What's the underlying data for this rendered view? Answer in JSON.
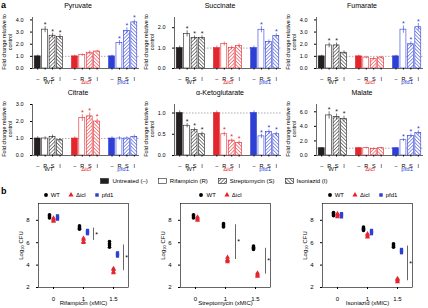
{
  "panel_labels": [
    "a",
    "b"
  ],
  "treatment_labels": [
    "Untreated (–)",
    "Rifampicin (R)",
    "Streptomycin (S)",
    "Isoniazid (I)"
  ],
  "significance_label": "*",
  "chart_data": [
    {
      "type": "bar",
      "title": "Pyruvate",
      "ylabel": "Fold change relative to control",
      "categories": [
        "–",
        "R",
        "S",
        "I"
      ],
      "ylim": [
        0,
        4.2
      ],
      "yticks": [
        0,
        1,
        2,
        3,
        4
      ],
      "hline": 1,
      "series": [
        {
          "name": "WT",
          "color": "#231f20",
          "values": [
            1,
            3.2,
            2.7,
            2.6
          ],
          "errors": [
            0.1,
            0.25,
            0.2,
            0.2
          ],
          "significant": [
            false,
            true,
            true,
            true
          ]
        },
        {
          "name": "Δicl",
          "color": "#e3262d",
          "values": [
            1,
            1.1,
            1.3,
            1.4
          ],
          "errors": [
            0.1,
            0.1,
            0.15,
            0.1
          ],
          "significant": [
            false,
            false,
            false,
            false
          ]
        },
        {
          "name": "pfd1",
          "color": "#2e3fd6",
          "values": [
            1,
            2.1,
            3.1,
            3.8
          ],
          "errors": [
            0.1,
            0.2,
            0.25,
            0.2
          ],
          "significant": [
            false,
            true,
            true,
            true
          ]
        }
      ]
    },
    {
      "type": "bar",
      "title": "Succinate",
      "ylabel": "Fold change relative to control",
      "categories": [
        "–",
        "R",
        "S",
        "I"
      ],
      "ylim": [
        0,
        2.5
      ],
      "yticks": [
        0,
        1,
        2
      ],
      "hline": 1,
      "series": [
        {
          "name": "WT",
          "color": "#231f20",
          "values": [
            1,
            1.7,
            1.5,
            1.5
          ],
          "errors": [
            0.1,
            0.15,
            0.1,
            0.1
          ],
          "significant": [
            false,
            true,
            true,
            true
          ]
        },
        {
          "name": "Δicl",
          "color": "#e3262d",
          "values": [
            1,
            1.2,
            1.0,
            1.1
          ],
          "errors": [
            0.1,
            0.1,
            0.1,
            0.1
          ],
          "significant": [
            false,
            false,
            false,
            false
          ]
        },
        {
          "name": "pfd1",
          "color": "#2e3fd6",
          "values": [
            1,
            1.9,
            1.3,
            1.6
          ],
          "errors": [
            0.1,
            0.15,
            0.1,
            0.1
          ],
          "significant": [
            false,
            true,
            false,
            true
          ]
        }
      ]
    },
    {
      "type": "bar",
      "title": "Fumarate",
      "ylabel": "Fold change relative to control",
      "categories": [
        "–",
        "R",
        "S",
        "I"
      ],
      "ylim": [
        0,
        4.2
      ],
      "yticks": [
        0,
        1,
        2,
        3,
        4
      ],
      "hline": 1,
      "series": [
        {
          "name": "WT",
          "color": "#231f20",
          "values": [
            1,
            1.9,
            1.9,
            1.3
          ],
          "errors": [
            0.1,
            0.2,
            0.2,
            0.15
          ],
          "significant": [
            false,
            true,
            true,
            false
          ]
        },
        {
          "name": "Δicl",
          "color": "#e3262d",
          "values": [
            1,
            0.9,
            0.8,
            0.9
          ],
          "errors": [
            0.1,
            0.1,
            0.1,
            0.1
          ],
          "significant": [
            false,
            false,
            false,
            false
          ]
        },
        {
          "name": "pfd1",
          "color": "#2e3fd6",
          "values": [
            1,
            3.2,
            2.0,
            3.4
          ],
          "errors": [
            0.1,
            0.3,
            0.2,
            0.3
          ],
          "significant": [
            false,
            true,
            true,
            true
          ]
        }
      ]
    },
    {
      "type": "bar",
      "title": "Citrate",
      "ylabel": "Fold change relative to control",
      "categories": [
        "–",
        "R",
        "S",
        "I"
      ],
      "ylim": [
        0,
        3
      ],
      "yticks": [
        0,
        1,
        2,
        3
      ],
      "hline": 1,
      "series": [
        {
          "name": "WT",
          "color": "#231f20",
          "values": [
            1,
            1.0,
            1.1,
            0.9
          ],
          "errors": [
            0.1,
            0.1,
            0.1,
            0.1
          ],
          "significant": [
            false,
            false,
            false,
            false
          ]
        },
        {
          "name": "Δicl",
          "color": "#e3262d",
          "values": [
            1,
            2.2,
            2.3,
            2.0
          ],
          "errors": [
            0.1,
            0.2,
            0.2,
            0.15
          ],
          "significant": [
            false,
            true,
            true,
            true
          ]
        },
        {
          "name": "pfd1",
          "color": "#2e3fd6",
          "values": [
            1,
            1.0,
            1.0,
            1.1
          ],
          "errors": [
            0.1,
            0.1,
            0.1,
            0.1
          ],
          "significant": [
            false,
            false,
            false,
            false
          ]
        }
      ]
    },
    {
      "type": "bar",
      "title": "α-Ketoglutarate",
      "ylabel": "Fold change relative to control",
      "categories": [
        "–",
        "R",
        "S",
        "I"
      ],
      "ylim": [
        0,
        1.2
      ],
      "yticks": [
        0,
        0.5,
        1
      ],
      "hline": 1,
      "series": [
        {
          "name": "WT",
          "color": "#231f20",
          "values": [
            1,
            0.7,
            0.6,
            0.5
          ],
          "errors": [
            0.05,
            0.05,
            0.05,
            0.05
          ],
          "significant": [
            false,
            true,
            true,
            true
          ]
        },
        {
          "name": "Δicl",
          "color": "#e3262d",
          "values": [
            1,
            0.5,
            0.35,
            0.3
          ],
          "errors": [
            0.05,
            0.05,
            0.04,
            0.04
          ],
          "significant": [
            false,
            true,
            true,
            true
          ]
        },
        {
          "name": "pfd1",
          "color": "#2e3fd6",
          "values": [
            1,
            0.45,
            0.55,
            0.5
          ],
          "errors": [
            0.05,
            0.05,
            0.05,
            0.05
          ],
          "significant": [
            false,
            true,
            true,
            true
          ]
        }
      ]
    },
    {
      "type": "bar",
      "title": "Malate",
      "ylabel": "Fold change relative to control",
      "categories": [
        "–",
        "R",
        "S",
        "I"
      ],
      "ylim": [
        0,
        7
      ],
      "yticks": [
        0,
        2,
        4,
        6
      ],
      "hline": 1,
      "series": [
        {
          "name": "WT",
          "color": "#231f20",
          "values": [
            1,
            5.5,
            5.3,
            5.0
          ],
          "errors": [
            0.1,
            0.5,
            0.4,
            0.4
          ],
          "significant": [
            false,
            true,
            true,
            true
          ]
        },
        {
          "name": "Δicl",
          "color": "#e3262d",
          "values": [
            1,
            1.0,
            0.9,
            1.0
          ],
          "errors": [
            0.1,
            0.1,
            0.1,
            0.1
          ],
          "significant": [
            false,
            false,
            false,
            false
          ]
        },
        {
          "name": "pfd1",
          "color": "#2e3fd6",
          "values": [
            1,
            2.1,
            2.7,
            3.1
          ],
          "errors": [
            0.1,
            0.2,
            0.25,
            0.3
          ],
          "significant": [
            false,
            true,
            true,
            true
          ]
        }
      ]
    },
    {
      "type": "scatter",
      "xlabel": "Rifampicin (xMIC)",
      "ylabel": "Log₁₀ CFU",
      "categories": [
        "0",
        "1",
        "1.5"
      ],
      "ylim": [
        2,
        9.5
      ],
      "yticks": [
        2,
        4,
        6,
        8
      ],
      "legend": "top",
      "series": [
        {
          "name": "WT",
          "color": "#000000",
          "marker": "circle",
          "values": [
            [
              8.5,
              8.3,
              8.2,
              8.4
            ],
            [
              7.5,
              7.3,
              7.2,
              7.4
            ],
            [
              5.9,
              5.6,
              5.8,
              6.1
            ]
          ]
        },
        {
          "name": "Δicl",
          "color": "#e3262d",
          "marker": "triangle",
          "values": [
            [
              8.0,
              8.2,
              7.9,
              8.1
            ],
            [
              6.4,
              6.1,
              6.0,
              6.3
            ],
            [
              3.7,
              3.4,
              3.3,
              3.6
            ]
          ]
        },
        {
          "name": "pfd1",
          "color": "#2e3fd6",
          "marker": "square",
          "values": [
            [
              8.3,
              8.1,
              8.2,
              8.4
            ],
            [
              7.1,
              6.9,
              7.0,
              6.8
            ],
            [
              5.0,
              4.8,
              4.9,
              5.1
            ]
          ]
        }
      ],
      "comparisons": [
        {
          "x": "1",
          "y1": 7.3,
          "y2": 6.2
        },
        {
          "x": "1.5",
          "y1": 5.8,
          "y2": 3.5
        }
      ]
    },
    {
      "type": "scatter",
      "xlabel": "Streptomycin (xMIC)",
      "ylabel": "Log₁₀ CFU",
      "categories": [
        "0",
        "1",
        "1.5"
      ],
      "ylim": [
        2,
        9.5
      ],
      "yticks": [
        2,
        4,
        6,
        8
      ],
      "legend": "top",
      "series": [
        {
          "name": "WT",
          "color": "#000000",
          "marker": "circle",
          "values": [
            [
              8.4,
              8.2,
              8.3,
              8.5
            ],
            [
              7.7,
              7.5,
              7.6,
              7.4
            ],
            [
              5.6,
              5.4,
              5.5,
              5.7
            ]
          ]
        },
        {
          "name": "Δicl",
          "color": "#e3262d",
          "marker": "triangle",
          "values": [
            [
              8.1,
              8.3,
              8.0,
              8.2
            ],
            [
              4.7,
              4.4,
              4.5,
              4.3
            ],
            [
              3.3,
              3.0,
              3.2,
              3.1
            ]
          ]
        }
      ],
      "comparisons": [
        {
          "x": "1",
          "y1": 7.6,
          "y2": 4.5
        },
        {
          "x": "1.5",
          "y1": 5.5,
          "y2": 3.2
        }
      ]
    },
    {
      "type": "scatter",
      "xlabel": "Isoniazid (xMIC)",
      "ylabel": "Log₁₀ CFU",
      "categories": [
        "0",
        "1",
        "1.5"
      ],
      "ylim": [
        2,
        9.5
      ],
      "yticks": [
        2,
        4,
        6,
        8
      ],
      "legend": "top",
      "series": [
        {
          "name": "WT",
          "color": "#000000",
          "marker": "circle",
          "values": [
            [
              8.6,
              8.4,
              8.5,
              8.7
            ],
            [
              7.3,
              7.1,
              7.2,
              7.4
            ],
            [
              5.8,
              5.6,
              5.7,
              5.9
            ]
          ]
        },
        {
          "name": "Δicl",
          "color": "#e3262d",
          "marker": "triangle",
          "values": [
            [
              8.4,
              8.6,
              8.3,
              8.5
            ],
            [
              6.8,
              6.6,
              6.7,
              6.5
            ],
            [
              2.7,
              2.5,
              2.6,
              2.8
            ]
          ]
        },
        {
          "name": "pfd1",
          "color": "#2e3fd6",
          "marker": "square",
          "values": [
            [
              8.5,
              8.3,
              8.4,
              8.6
            ],
            [
              7.0,
              6.9,
              7.1,
              6.8
            ],
            [
              5.3,
              5.1,
              5.2,
              5.4
            ]
          ]
        }
      ],
      "comparisons": [
        {
          "x": "1.5",
          "y1": 5.7,
          "y2": 2.6
        }
      ]
    }
  ]
}
